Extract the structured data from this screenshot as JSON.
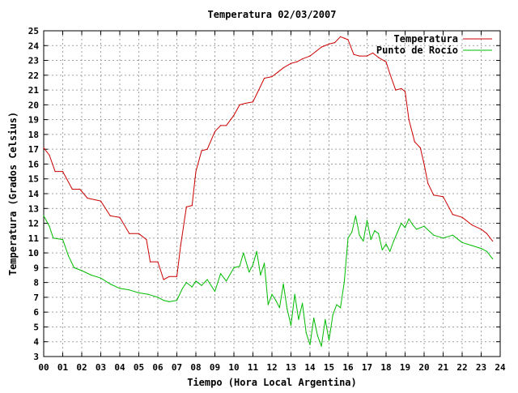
{
  "chart_data": {
    "type": "line",
    "title": "Temperatura 02/03/2007",
    "xlabel": "Tiempo (Hora Local Argentina)",
    "ylabel": "Temperatura (Grados Celsius)",
    "xlim": [
      0,
      24
    ],
    "ylim": [
      3,
      25
    ],
    "grid": true,
    "legend_position": "top-right",
    "x_tick_labels": [
      "00",
      "01",
      "02",
      "03",
      "04",
      "05",
      "06",
      "07",
      "08",
      "09",
      "10",
      "11",
      "12",
      "13",
      "14",
      "15",
      "16",
      "17",
      "18",
      "19",
      "20",
      "21",
      "22",
      "23",
      "24"
    ],
    "y_ticks": [
      3,
      4,
      5,
      6,
      7,
      8,
      9,
      10,
      11,
      12,
      13,
      14,
      15,
      16,
      17,
      18,
      19,
      20,
      21,
      22,
      23,
      24,
      25
    ],
    "series": [
      {
        "name": "Temperatura",
        "color": "#cc0000",
        "x": [
          0,
          0.3,
          0.6,
          1.0,
          1.5,
          1.9,
          2.3,
          3.0,
          3.5,
          4.0,
          4.5,
          5.0,
          5.4,
          5.6,
          6.0,
          6.3,
          6.6,
          7.0,
          7.2,
          7.5,
          7.8,
          8.0,
          8.3,
          8.6,
          9.0,
          9.3,
          9.6,
          10.0,
          10.3,
          10.6,
          11.0,
          11.3,
          11.6,
          12.0,
          12.3,
          12.6,
          13.0,
          13.3,
          13.6,
          14.0,
          14.3,
          14.6,
          15.0,
          15.3,
          15.6,
          15.8,
          16.0,
          16.3,
          16.6,
          17.0,
          17.3,
          17.6,
          18.0,
          18.2,
          18.5,
          18.8,
          19.0,
          19.2,
          19.5,
          19.8,
          20.0,
          20.2,
          20.5,
          21.0,
          21.5,
          22.0,
          22.5,
          23.0,
          23.3,
          23.6
        ],
        "y": [
          17.1,
          16.6,
          15.5,
          15.5,
          14.3,
          14.3,
          13.7,
          13.5,
          12.5,
          12.4,
          11.3,
          11.3,
          10.9,
          9.4,
          9.4,
          8.2,
          8.4,
          8.4,
          10.5,
          13.1,
          13.2,
          15.5,
          16.9,
          17.0,
          18.2,
          18.6,
          18.6,
          19.3,
          20.0,
          20.1,
          20.2,
          21.0,
          21.8,
          21.9,
          22.2,
          22.5,
          22.8,
          22.9,
          23.1,
          23.3,
          23.6,
          23.9,
          24.1,
          24.2,
          24.6,
          24.5,
          24.4,
          23.4,
          23.3,
          23.3,
          23.5,
          23.2,
          22.9,
          22.1,
          21.0,
          21.1,
          20.9,
          19.0,
          17.5,
          17.1,
          16.0,
          14.7,
          13.9,
          13.8,
          12.6,
          12.4,
          11.9,
          11.6,
          11.3,
          10.8
        ]
      },
      {
        "name": "Punto de Rocío",
        "color": "#00bb00",
        "x": [
          0,
          0.3,
          0.5,
          1.0,
          1.3,
          1.6,
          2.0,
          2.5,
          3.0,
          3.5,
          4.0,
          4.5,
          5.0,
          5.5,
          6.0,
          6.3,
          6.6,
          7.0,
          7.3,
          7.5,
          7.8,
          8.0,
          8.3,
          8.6,
          9.0,
          9.3,
          9.6,
          10.0,
          10.3,
          10.5,
          10.8,
          11.0,
          11.2,
          11.4,
          11.6,
          11.8,
          12.0,
          12.2,
          12.4,
          12.6,
          12.8,
          13.0,
          13.2,
          13.4,
          13.6,
          13.8,
          14.0,
          14.2,
          14.4,
          14.6,
          14.8,
          15.0,
          15.2,
          15.4,
          15.6,
          15.8,
          16.0,
          16.2,
          16.4,
          16.6,
          16.8,
          17.0,
          17.2,
          17.4,
          17.6,
          17.8,
          18.0,
          18.2,
          18.4,
          18.6,
          18.8,
          19.0,
          19.2,
          19.4,
          19.6,
          20.0,
          20.5,
          21.0,
          21.5,
          22.0,
          22.5,
          23.0,
          23.3,
          23.6
        ],
        "y": [
          12.5,
          11.8,
          11.0,
          10.9,
          9.8,
          9.0,
          8.8,
          8.5,
          8.3,
          7.9,
          7.6,
          7.5,
          7.3,
          7.2,
          7.0,
          6.8,
          6.7,
          6.8,
          7.6,
          8.0,
          7.7,
          8.1,
          7.8,
          8.2,
          7.4,
          8.6,
          8.1,
          9.0,
          9.1,
          10.0,
          8.7,
          9.2,
          10.1,
          8.5,
          9.3,
          6.5,
          7.2,
          6.8,
          6.3,
          7.9,
          6.2,
          5.1,
          7.2,
          5.5,
          6.6,
          4.6,
          3.8,
          5.6,
          4.4,
          3.7,
          5.5,
          4.1,
          5.8,
          6.5,
          6.3,
          8.0,
          11.0,
          11.4,
          12.5,
          11.2,
          10.8,
          12.2,
          10.9,
          11.5,
          11.3,
          10.2,
          10.6,
          10.1,
          10.8,
          11.4,
          12.0,
          11.7,
          12.3,
          11.9,
          11.6,
          11.8,
          11.2,
          11.0,
          11.2,
          10.7,
          10.5,
          10.3,
          10.1,
          9.6
        ]
      }
    ]
  }
}
